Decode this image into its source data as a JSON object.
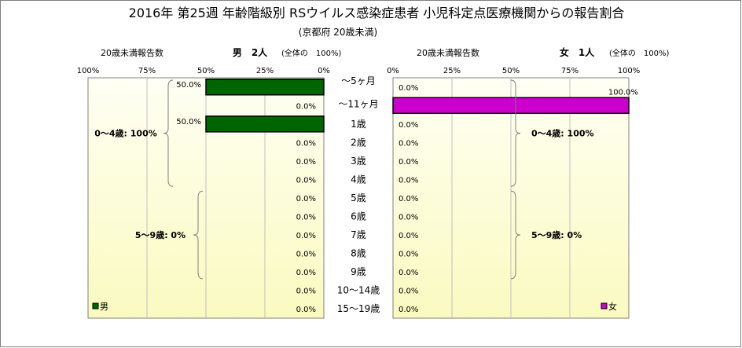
{
  "title": "2016年 第25週 年齢階級別 RSウイルス感染症患者 小児科定点医療機関からの報告割合",
  "subtitle": "(京都府 20歳未満)",
  "colors": {
    "male": "#006400",
    "female": "#cc00cc",
    "plot_bg_top": "#fffff4",
    "plot_bg_bottom": "#fafac0"
  },
  "chart_data": {
    "type": "bar",
    "categories": [
      "～5ヶ月",
      "～11ヶ月",
      "1歳",
      "2歳",
      "3歳",
      "4歳",
      "5歳",
      "6歳",
      "7歳",
      "8歳",
      "9歳",
      "10～14歳",
      "15～19歳"
    ],
    "xlim": [
      0,
      100
    ],
    "x_ticks": [
      "100%",
      "75%",
      "50%",
      "25%",
      "0%"
    ],
    "x_ticks_right": [
      "0%",
      "25%",
      "50%",
      "75%",
      "100%"
    ],
    "series": [
      {
        "name": "男",
        "header_label": "20歳未満報告数",
        "header_title": "男　2人",
        "header_note": "(全体の　100%)",
        "values": [
          50,
          0,
          50,
          0,
          0,
          0,
          0,
          0,
          0,
          0,
          0,
          0,
          0
        ],
        "labels": [
          "50.0%",
          "0.0%",
          "50.0%",
          "0.0%",
          "0.0%",
          "0.0%",
          "0.0%",
          "0.0%",
          "0.0%",
          "0.0%",
          "0.0%",
          "0.0%",
          "0.0%"
        ],
        "legend": "男",
        "groups": [
          {
            "label": "0～4歳: 100%",
            "from": 0,
            "to": 5
          },
          {
            "label": "5～9歳: 0%",
            "from": 6,
            "to": 10
          }
        ]
      },
      {
        "name": "女",
        "header_label": "20歳未満報告数",
        "header_title": "女　1人",
        "header_note": "(全体の　100%)",
        "values": [
          0,
          100,
          0,
          0,
          0,
          0,
          0,
          0,
          0,
          0,
          0,
          0,
          0
        ],
        "labels": [
          "0.0%",
          "100.0%",
          "0.0%",
          "0.0%",
          "0.0%",
          "0.0%",
          "0.0%",
          "0.0%",
          "0.0%",
          "0.0%",
          "0.0%",
          "0.0%",
          "0.0%"
        ],
        "legend": "女",
        "groups": [
          {
            "label": "0～4歳: 100%",
            "from": 0,
            "to": 5
          },
          {
            "label": "5～9歳: 0%",
            "from": 6,
            "to": 10
          }
        ]
      }
    ]
  }
}
